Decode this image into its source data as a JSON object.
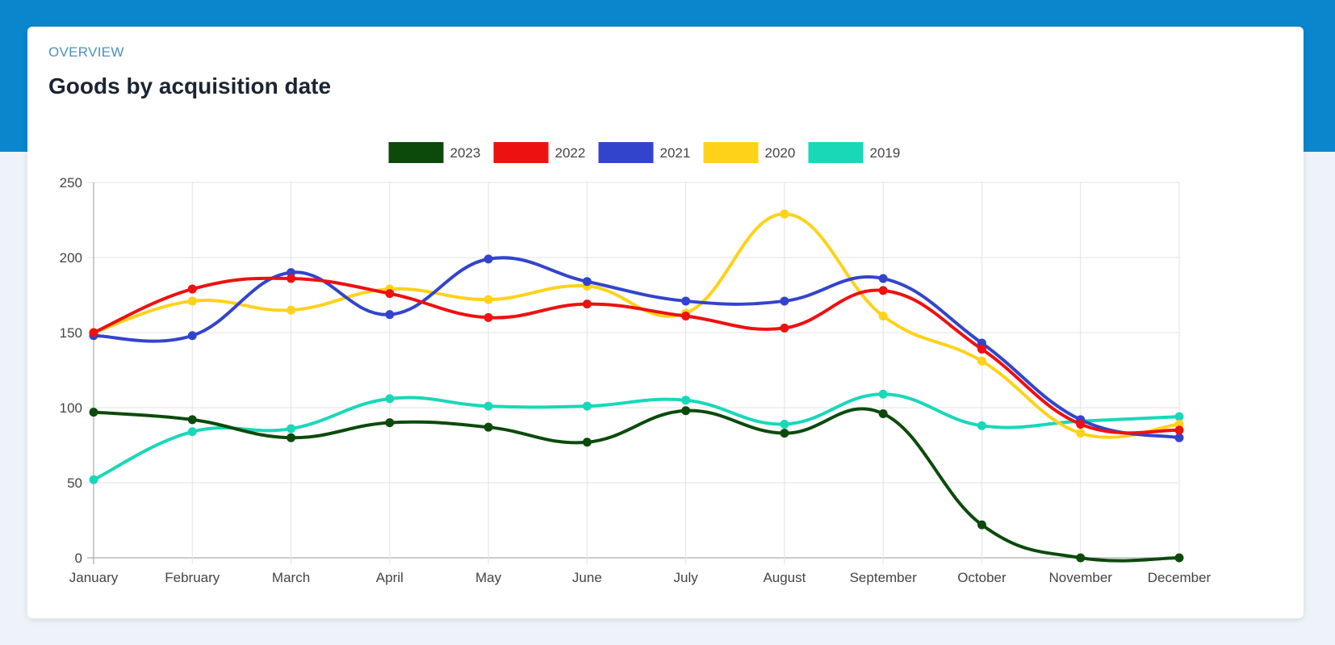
{
  "header": {
    "eyebrow": "OVERVIEW",
    "title": "Goods by acquisition date"
  },
  "colors": {
    "band": "#0a86cc",
    "eyebrow": "#4b8fbf",
    "grid": "#e3e3e3",
    "axis": "#9a9a9a"
  },
  "chart_data": {
    "type": "line",
    "smooth": true,
    "grid": true,
    "legend_position": "top",
    "categories": [
      "January",
      "February",
      "March",
      "April",
      "May",
      "June",
      "July",
      "August",
      "September",
      "October",
      "November",
      "December"
    ],
    "ylim": [
      0,
      250
    ],
    "yticks": [
      0,
      50,
      100,
      150,
      200,
      250
    ],
    "xlabel": "",
    "ylabel": "",
    "series": [
      {
        "name": "2023",
        "color": "#0c4a0c",
        "values": [
          97,
          92,
          80,
          90,
          87,
          77,
          98,
          83,
          96,
          22,
          0,
          0
        ]
      },
      {
        "name": "2022",
        "color": "#ee1111",
        "values": [
          150,
          179,
          186,
          176,
          160,
          169,
          161,
          153,
          178,
          139,
          89,
          85
        ]
      },
      {
        "name": "2021",
        "color": "#3344cc",
        "values": [
          148,
          148,
          190,
          162,
          199,
          184,
          171,
          171,
          186,
          143,
          92,
          80
        ]
      },
      {
        "name": "2020",
        "color": "#ffd21a",
        "values": [
          150,
          171,
          165,
          179,
          172,
          181,
          163,
          229,
          161,
          131,
          83,
          89
        ]
      },
      {
        "name": "2019",
        "color": "#18d8b8",
        "values": [
          52,
          84,
          86,
          106,
          101,
          101,
          105,
          89,
          109,
          88,
          91,
          94
        ]
      }
    ]
  }
}
